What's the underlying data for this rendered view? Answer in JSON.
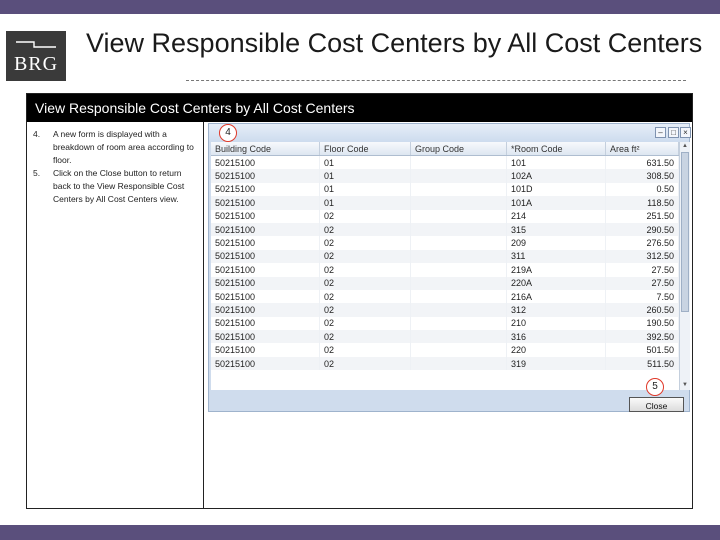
{
  "logo": {
    "text": "BRG"
  },
  "slide": {
    "title": "View Responsible Cost Centers by All Cost Centers"
  },
  "panel": {
    "title": "View Responsible Cost Centers by All Cost Centers"
  },
  "steps": [
    {
      "num": "4.",
      "text": "A new form is displayed with a breakdown of room area according to floor."
    },
    {
      "num": "5.",
      "text": "Click on the Close button to return back to the View Responsible Cost Centers by All Cost Centers view."
    }
  ],
  "callouts": {
    "first": "4",
    "second": "5"
  },
  "grid": {
    "columns": [
      "Building Code",
      "Floor Code",
      "Group Code",
      "*Room Code",
      "Area ft²"
    ],
    "rows": [
      [
        "50215100",
        "01",
        "",
        "101",
        "631.50"
      ],
      [
        "50215100",
        "01",
        "",
        "102A",
        "308.50"
      ],
      [
        "50215100",
        "01",
        "",
        "101D",
        "0.50"
      ],
      [
        "50215100",
        "01",
        "",
        "101A",
        "118.50"
      ],
      [
        "50215100",
        "02",
        "",
        "214",
        "251.50"
      ],
      [
        "50215100",
        "02",
        "",
        "315",
        "290.50"
      ],
      [
        "50215100",
        "02",
        "",
        "209",
        "276.50"
      ],
      [
        "50215100",
        "02",
        "",
        "311",
        "312.50"
      ],
      [
        "50215100",
        "02",
        "",
        "219A",
        "27.50"
      ],
      [
        "50215100",
        "02",
        "",
        "220A",
        "27.50"
      ],
      [
        "50215100",
        "02",
        "",
        "216A",
        "7.50"
      ],
      [
        "50215100",
        "02",
        "",
        "312",
        "260.50"
      ],
      [
        "50215100",
        "02",
        "",
        "210",
        "190.50"
      ],
      [
        "50215100",
        "02",
        "",
        "316",
        "392.50"
      ],
      [
        "50215100",
        "02",
        "",
        "220",
        "501.50"
      ],
      [
        "50215100",
        "02",
        "",
        "319",
        "511.50"
      ]
    ]
  },
  "close_button": {
    "label": "Close"
  },
  "colors": {
    "brand_bar": "#5a4f7c",
    "callout_ring": "#e03a2a",
    "panel_header": "#000000"
  }
}
